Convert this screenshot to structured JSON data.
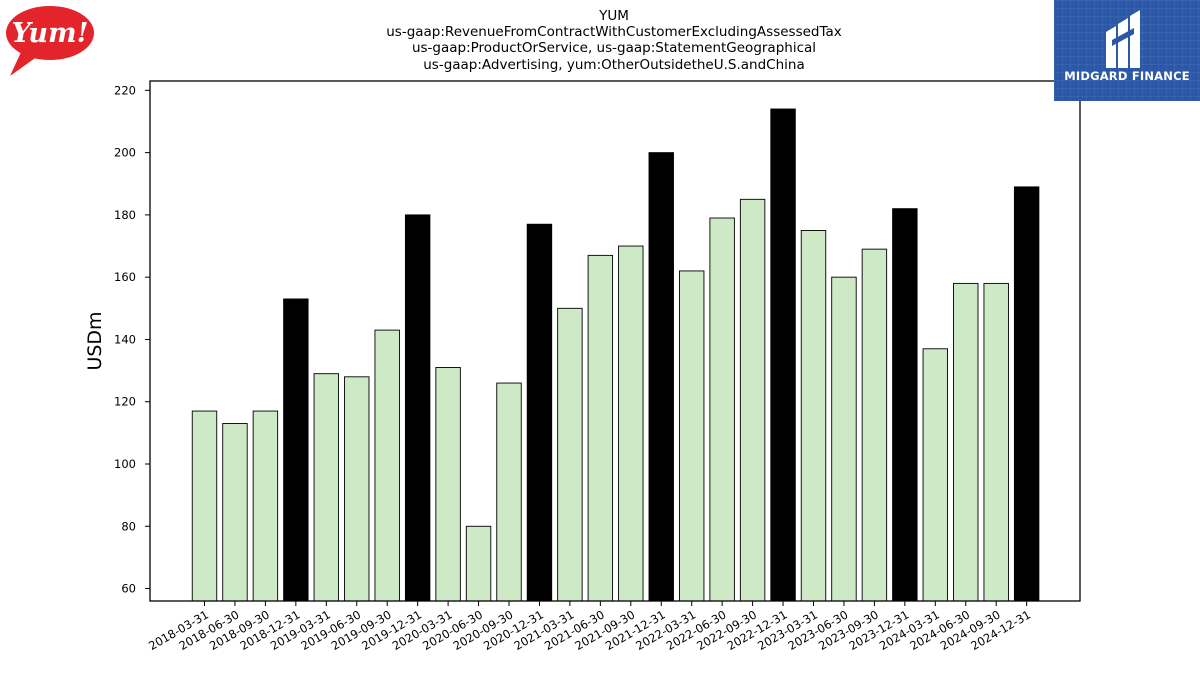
{
  "logos": {
    "left": {
      "text": "Yum!",
      "color": "#e4242b"
    },
    "right": {
      "text": "MIDGARD FINANCE",
      "color": "#2b57a8"
    }
  },
  "chart_data": {
    "type": "bar",
    "title_lines": [
      "YUM",
      "us-gaap:RevenueFromContractWithCustomerExcludingAssessedTax",
      "us-gaap:ProductOrService, us-gaap:StatementGeographical",
      "us-gaap:Advertising, yum:OtherOutsidetheU.S.andChina"
    ],
    "xlabel": "",
    "ylabel": "USDm",
    "ylim": [
      56,
      223
    ],
    "yticks": [
      60,
      80,
      100,
      120,
      140,
      160,
      180,
      200,
      220
    ],
    "grid": false,
    "colors": {
      "quarter": "#cde9c6",
      "year_end": "#000000",
      "edge": "#000000"
    },
    "categories": [
      "2018-03-31",
      "2018-06-30",
      "2018-09-30",
      "2018-12-31",
      "2019-03-31",
      "2019-06-30",
      "2019-09-30",
      "2019-12-31",
      "2020-03-31",
      "2020-06-30",
      "2020-09-30",
      "2020-12-31",
      "2021-03-31",
      "2021-06-30",
      "2021-09-30",
      "2021-12-31",
      "2022-03-31",
      "2022-06-30",
      "2022-09-30",
      "2022-12-31",
      "2023-03-31",
      "2023-06-30",
      "2023-09-30",
      "2023-12-31",
      "2024-03-31",
      "2024-06-30",
      "2024-09-30",
      "2024-12-31"
    ],
    "values": [
      117,
      113,
      117,
      153,
      129,
      128,
      143,
      180,
      131,
      80,
      126,
      177,
      150,
      167,
      170,
      200,
      162,
      179,
      185,
      214,
      175,
      160,
      169,
      182,
      137,
      158,
      158,
      189
    ]
  }
}
